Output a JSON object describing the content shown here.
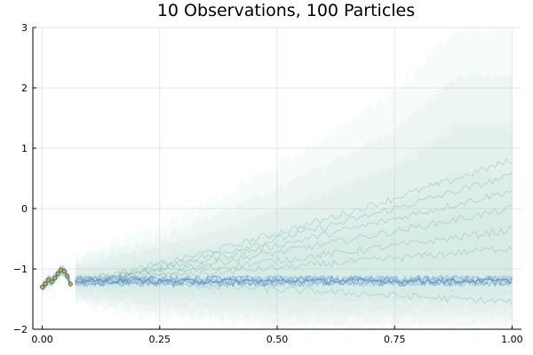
{
  "chart_data": {
    "type": "line",
    "title": "10 Observations, 100 Particles",
    "xlabel": "",
    "ylabel": "",
    "xlim": [
      -0.02,
      1.02
    ],
    "ylim": [
      -2,
      3
    ],
    "grid": true,
    "legend": "none",
    "x_ticks": [
      "0.00",
      "0.25",
      "0.50",
      "0.75",
      "1.00"
    ],
    "y_ticks": [
      "-2",
      "-1",
      "0",
      "1",
      "2",
      "3"
    ],
    "observations": {
      "name": "",
      "color": "#e6a042",
      "x": [
        0.0,
        0.0067,
        0.0133,
        0.02,
        0.0267,
        0.0333,
        0.04,
        0.0467,
        0.0533,
        0.06
      ],
      "y": [
        -1.3,
        -1.25,
        -1.18,
        -1.21,
        -1.15,
        -1.08,
        -1.02,
        -1.04,
        -1.12,
        -1.25
      ]
    },
    "observation_band": {
      "color": "#26c6d2",
      "halfwidth": 0.08
    },
    "particle_band": {
      "color": "#9ed9c7",
      "x": [
        0.07,
        0.25,
        0.5,
        0.75,
        0.88,
        1.0
      ],
      "upper": [
        -0.8,
        -0.3,
        0.7,
        1.9,
        3.0,
        3.0
      ],
      "lower": [
        -1.6,
        -1.8,
        -2.0,
        -2.0,
        -2.0,
        -2.0
      ]
    },
    "particle_mean": {
      "color": "#4a90c8",
      "level": -1.2
    },
    "particles_diverging_end_values": [
      0.8,
      0.55,
      0.3,
      0.0,
      -0.35,
      -0.65,
      -1.55
    ]
  }
}
